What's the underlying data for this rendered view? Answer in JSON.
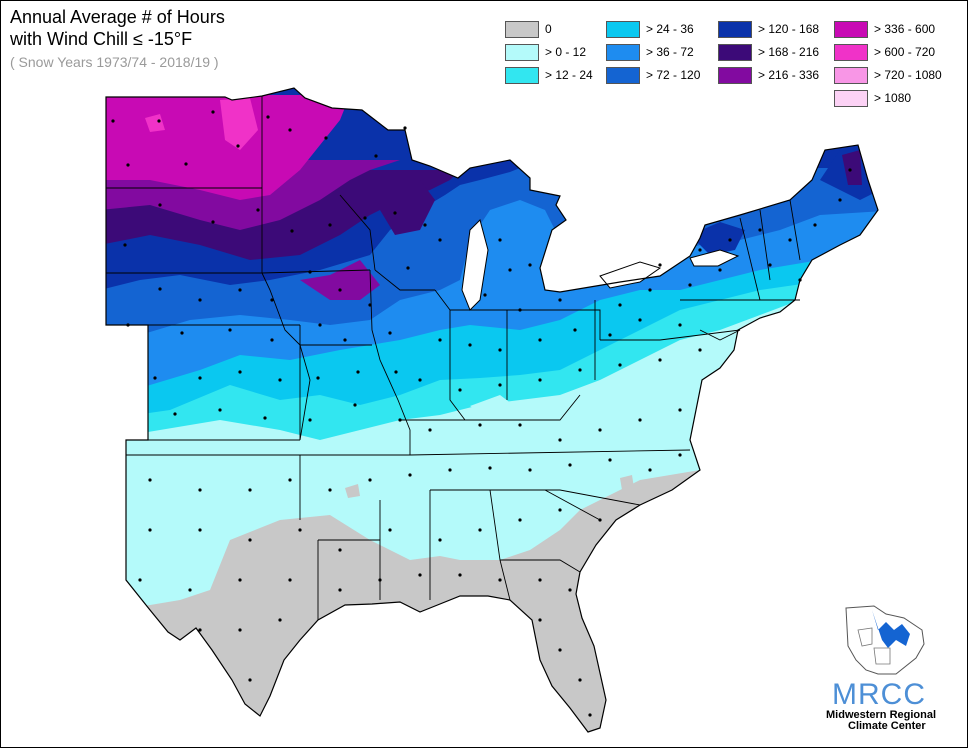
{
  "title": {
    "line1": "Annual Average # of Hours",
    "line2": " with Wind Chill ≤ -15°F",
    "line3": "( Snow Years 1973/74 - 2018/19 )"
  },
  "legend": [
    {
      "label": "0",
      "color": "#c8c8c8"
    },
    {
      "label": "> 0 - 12",
      "color": "#b4fafa"
    },
    {
      "label": "> 12 - 24",
      "color": "#32e6f0"
    },
    {
      "label": "> 24 - 36",
      "color": "#0ac8f0"
    },
    {
      "label": "> 36 - 72",
      "color": "#1e8cf0"
    },
    {
      "label": "> 72 - 120",
      "color": "#1464d2"
    },
    {
      "label": "> 120 - 168",
      "color": "#0a32aa"
    },
    {
      "label": "> 168 - 216",
      "color": "#3c0a78"
    },
    {
      "label": "> 216 - 336",
      "color": "#820aa0"
    },
    {
      "label": "> 336 - 600",
      "color": "#c80ab4"
    },
    {
      "label": "> 600 - 720",
      "color": "#f032c8"
    },
    {
      "label": "> 720 - 1080",
      "color": "#f896e6"
    },
    {
      "label": "> 1080",
      "color": "#fcd2f5"
    }
  ],
  "logo": {
    "name": "MRCC",
    "line1": "Midwestern Regional",
    "line2": "Climate Center"
  }
}
